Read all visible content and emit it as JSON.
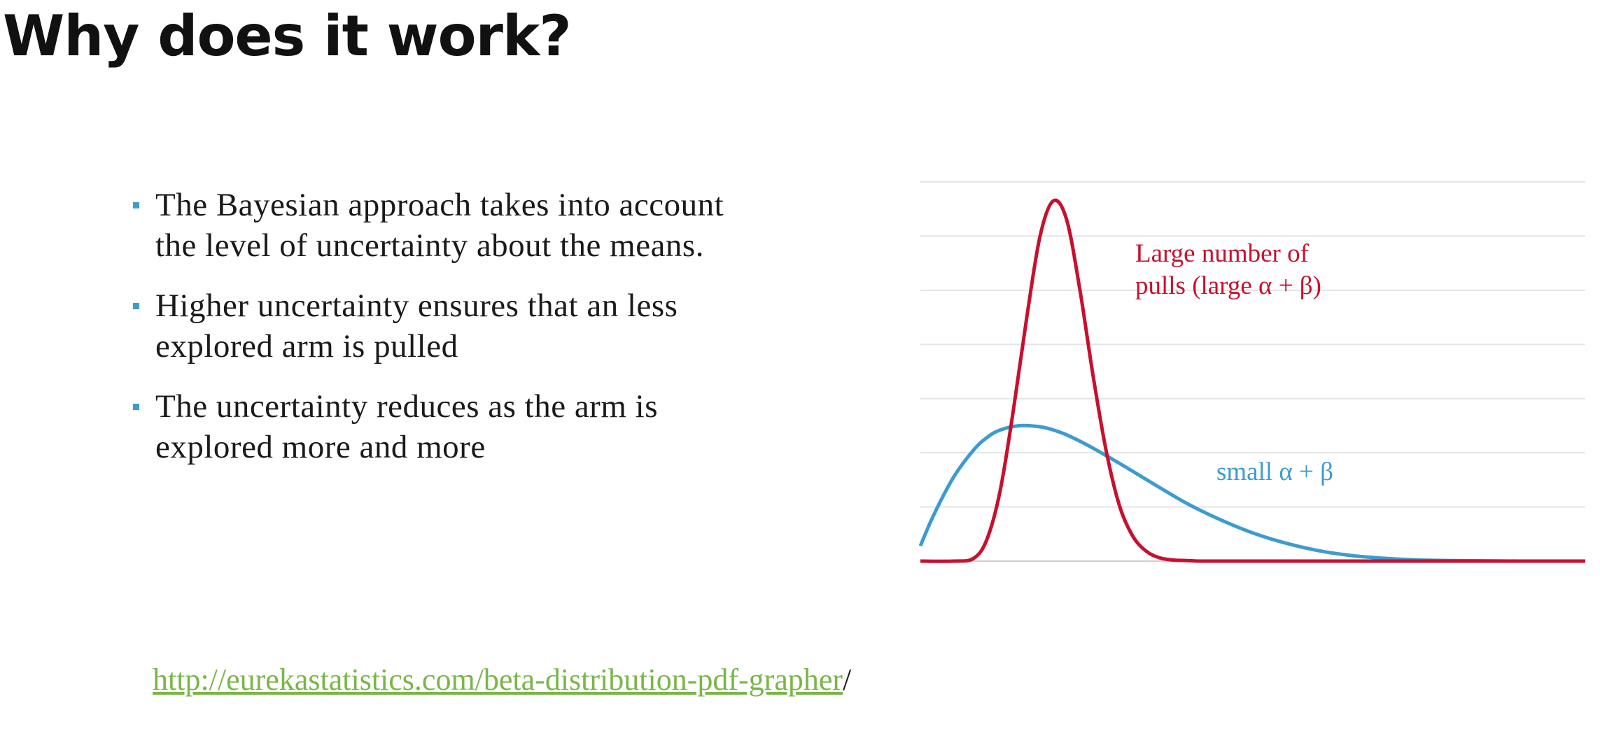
{
  "slide": {
    "title": "Why does it work?",
    "bullets": [
      {
        "line1": "The Bayesian approach takes into account",
        "line2": "the level of uncertainty about the means."
      },
      {
        "line1": "Higher uncertainty ensures that an less",
        "line2": "explored arm is pulled"
      },
      {
        "line1": "The uncertainty reduces as the arm is",
        "line2": "explored more and more"
      }
    ],
    "link": {
      "text": "http://eurekastatistics.com/beta-distribution-pdf-grapher",
      "suffix": "/"
    },
    "colors": {
      "bullet": "#3d9bd0",
      "link": "#7ab648",
      "red_curve": "#c8102e",
      "blue_curve": "#3d9bd0"
    }
  },
  "chart_data": {
    "type": "line",
    "title": "",
    "xlabel": "",
    "ylabel": "",
    "grid": true,
    "xlim": [
      0,
      1
    ],
    "ylim": [
      0,
      7
    ],
    "series": [
      {
        "name": "Large number of pulls (large α + β)",
        "label_line1": "Large number of",
        "label_line2": "pulls (large α + β)",
        "color": "#c8102e",
        "x": [
          0.0,
          0.05,
          0.08,
          0.1,
          0.12,
          0.14,
          0.16,
          0.18,
          0.2,
          0.22,
          0.24,
          0.26,
          0.28,
          0.3,
          0.32,
          0.34,
          0.36,
          0.38,
          0.4,
          0.42,
          0.45,
          0.5,
          0.6,
          0.8,
          1.0
        ],
        "y": [
          0.0,
          0.0,
          0.05,
          0.4,
          1.3,
          2.8,
          4.5,
          6.0,
          6.65,
          6.3,
          5.0,
          3.4,
          2.0,
          1.0,
          0.45,
          0.18,
          0.06,
          0.02,
          0.01,
          0.0,
          0.0,
          0.0,
          0.0,
          0.0,
          0.0
        ]
      },
      {
        "name": "small α + β",
        "label_line1": "small α + β",
        "color": "#3d9bd0",
        "x": [
          0.0,
          0.02,
          0.05,
          0.08,
          0.1,
          0.12,
          0.15,
          0.18,
          0.2,
          0.22,
          0.25,
          0.3,
          0.35,
          0.4,
          0.45,
          0.5,
          0.55,
          0.6,
          0.65,
          0.7,
          0.75,
          0.8,
          0.9,
          1.0
        ],
        "y": [
          0.28,
          0.85,
          1.55,
          2.05,
          2.28,
          2.42,
          2.5,
          2.48,
          2.42,
          2.33,
          2.15,
          1.8,
          1.43,
          1.07,
          0.77,
          0.52,
          0.33,
          0.19,
          0.1,
          0.05,
          0.02,
          0.01,
          0.0,
          0.0
        ]
      }
    ]
  }
}
